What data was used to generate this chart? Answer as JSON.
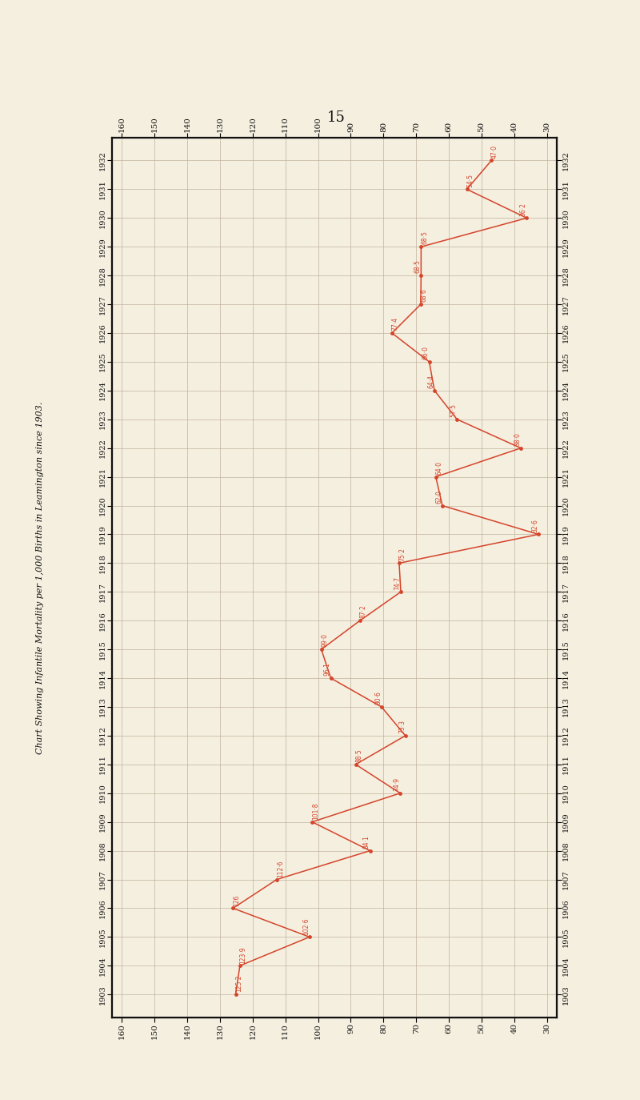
{
  "years": [
    1903,
    1904,
    1905,
    1906,
    1907,
    1908,
    1909,
    1910,
    1911,
    1912,
    1913,
    1914,
    1915,
    1916,
    1917,
    1918,
    1919,
    1920,
    1921,
    1922,
    1923,
    1924,
    1925,
    1926,
    1927,
    1928,
    1929,
    1930,
    1931,
    1932
  ],
  "values": [
    125.2,
    123.9,
    102.6,
    126.0,
    112.6,
    84.1,
    101.8,
    74.9,
    88.5,
    73.3,
    80.6,
    96.1,
    99.0,
    87.2,
    74.7,
    75.2,
    32.6,
    62.0,
    64.0,
    38.0,
    57.5,
    64.4,
    66.0,
    77.4,
    68.6,
    68.5,
    68.5,
    36.2,
    54.5,
    47.0
  ],
  "value_labels": [
    "125·2",
    "123·9",
    "102·6",
    "126",
    "112·6",
    "84·1",
    "101·8",
    "74·9",
    "88·5",
    "73·3",
    "80·6",
    "96·1",
    "99·0",
    "87·2",
    "74·7",
    "75·2",
    "32·6",
    "62·0",
    "64·0",
    "38·0",
    "57·5",
    "64·4",
    "66·0",
    "77·4",
    "68·6",
    "68·5",
    "68·5",
    "36·2",
    "54·5",
    "47·0"
  ],
  "x_ticks": [
    160,
    150,
    140,
    130,
    120,
    110,
    100,
    90,
    80,
    70,
    60,
    50,
    40,
    30
  ],
  "bg_color": "#f5efe0",
  "line_color": "#d4442a",
  "grid_major_color": "#bfb09a",
  "border_color": "#111111",
  "text_color": "#111111",
  "page_number": "15",
  "chart_title": "Chart Showing Infantile Mortality per 1,000 Births in Leamington since 1903."
}
